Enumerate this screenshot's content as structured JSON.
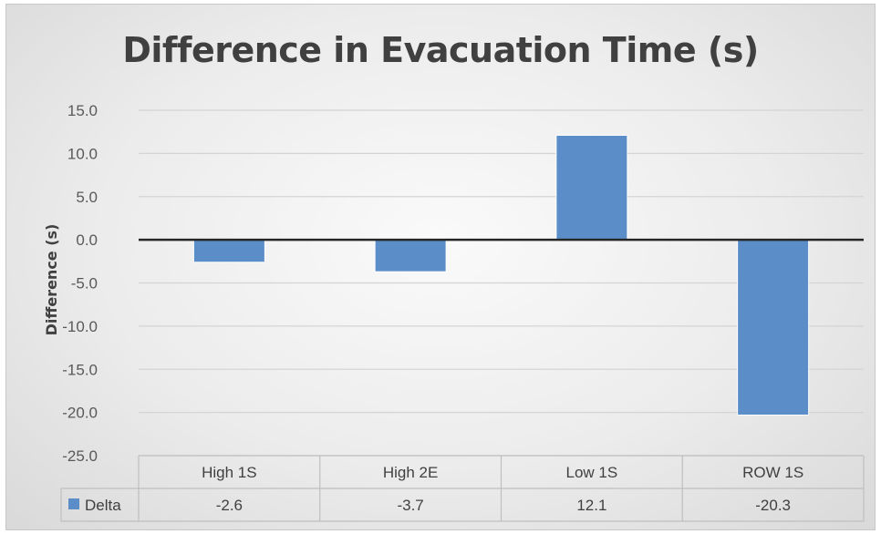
{
  "chart_data": {
    "type": "bar",
    "title": "Difference in Evacuation Time (s)",
    "ylabel": "Difference (s)",
    "xlabel": "",
    "categories": [
      "High 1S",
      "High 2E",
      "Low 1S",
      "ROW 1S"
    ],
    "series": [
      {
        "name": "Delta",
        "values": [
          -2.6,
          -3.7,
          12.1,
          -20.3
        ],
        "labels": [
          "-2.6",
          "-3.7",
          "12.1",
          "-20.3"
        ]
      }
    ],
    "ylim": [
      -25,
      15
    ],
    "yticks": [
      "15.0",
      "10.0",
      "5.0",
      "0.0",
      "-5.0",
      "-10.0",
      "-15.0",
      "-20.0",
      "-25.0"
    ],
    "grid": true,
    "legend": "data-table",
    "colors": {
      "bar": "#5b8dc8",
      "bar_stroke": "#ffffff",
      "grid": "#d4d4d4",
      "zero_line": "#262626",
      "table_border": "#bfbfbf"
    }
  }
}
